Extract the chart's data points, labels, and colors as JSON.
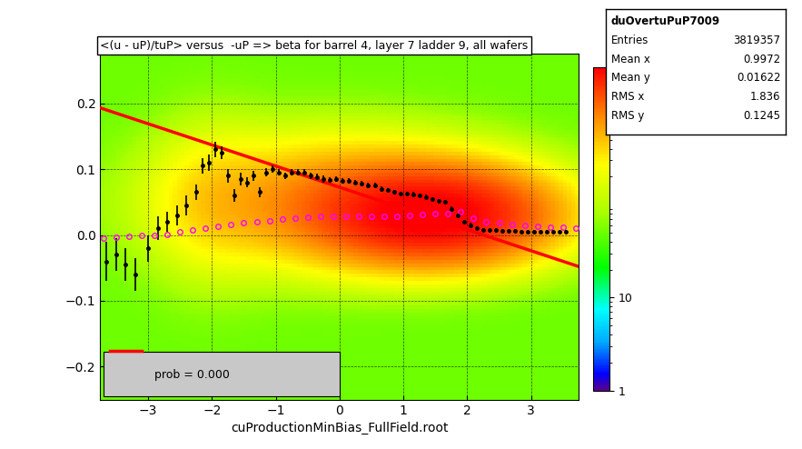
{
  "title": "<(u - uP)/tuP> versus  -uP => beta for barrel 4, layer 7 ladder 9, all wafers",
  "xlabel": "cuProductionMinBias_FullField.root",
  "stats_title": "duOvertuPuP7009",
  "entries": "3819357",
  "mean_x": "0.9972",
  "mean_y": "0.01622",
  "rms_x": "1.836",
  "rms_y": "0.1245",
  "xlim": [
    -3.75,
    3.75
  ],
  "ylim": [
    -0.25,
    0.275
  ],
  "xticks": [
    -3,
    -2,
    -1,
    0,
    1,
    2,
    3
  ],
  "yticks": [
    -0.2,
    -0.1,
    0.0,
    0.1,
    0.2
  ],
  "colorbar_label": "",
  "fit_line_x": [
    -3.75,
    3.75
  ],
  "fit_line_y": [
    0.193,
    -0.048
  ],
  "prob_text": "prob = 0.000",
  "legend_box_color": "#d3d3d3",
  "black_points_x": [
    -3.65,
    -3.5,
    -3.35,
    -3.2,
    -3.0,
    -2.85,
    -2.7,
    -2.55,
    -2.4,
    -2.25,
    -2.15,
    -2.05,
    -1.95,
    -1.85,
    -1.75,
    -1.65,
    -1.55,
    -1.45,
    -1.35,
    -1.25,
    -1.15,
    -1.05,
    -0.95,
    -0.85,
    -0.75,
    -0.65,
    -0.55,
    -0.45,
    -0.35,
    -0.25,
    -0.15,
    -0.05,
    0.05,
    0.15,
    0.25,
    0.35,
    0.45,
    0.55,
    0.65,
    0.75,
    0.85,
    0.95,
    1.05,
    1.15,
    1.25,
    1.35,
    1.45,
    1.55,
    1.65,
    1.75,
    1.85,
    1.95,
    2.05,
    2.15,
    2.25,
    2.35,
    2.45,
    2.55,
    2.65,
    2.75,
    2.85,
    2.95,
    3.05,
    3.15,
    3.25,
    3.35,
    3.45,
    3.55
  ],
  "black_points_y": [
    -0.04,
    -0.03,
    -0.045,
    -0.06,
    -0.02,
    0.01,
    0.02,
    0.03,
    0.045,
    0.065,
    0.105,
    0.11,
    0.13,
    0.125,
    0.09,
    0.06,
    0.085,
    0.08,
    0.09,
    0.065,
    0.095,
    0.1,
    0.095,
    0.09,
    0.095,
    0.095,
    0.095,
    0.09,
    0.088,
    0.085,
    0.083,
    0.085,
    0.082,
    0.082,
    0.08,
    0.078,
    0.075,
    0.075,
    0.07,
    0.068,
    0.065,
    0.063,
    0.063,
    0.062,
    0.06,
    0.058,
    0.055,
    0.052,
    0.05,
    0.04,
    0.03,
    0.02,
    0.015,
    0.01,
    0.008,
    0.007,
    0.007,
    0.006,
    0.006,
    0.006,
    0.005,
    0.005,
    0.005,
    0.005,
    0.005,
    0.005,
    0.005,
    0.005
  ],
  "black_err_y": [
    0.03,
    0.025,
    0.025,
    0.025,
    0.02,
    0.018,
    0.015,
    0.015,
    0.015,
    0.012,
    0.012,
    0.012,
    0.012,
    0.01,
    0.01,
    0.01,
    0.01,
    0.008,
    0.008,
    0.008,
    0.006,
    0.006,
    0.005,
    0.005,
    0.005,
    0.005,
    0.005,
    0.005,
    0.005,
    0.005,
    0.004,
    0.004,
    0.004,
    0.004,
    0.004,
    0.004,
    0.004,
    0.004,
    0.004,
    0.003,
    0.003,
    0.003,
    0.003,
    0.003,
    0.003,
    0.003,
    0.003,
    0.003,
    0.003,
    0.003,
    0.003,
    0.003,
    0.003,
    0.003,
    0.003,
    0.003,
    0.003,
    0.003,
    0.003,
    0.003,
    0.003,
    0.003,
    0.003,
    0.003,
    0.003,
    0.003,
    0.003,
    0.003
  ],
  "pink_points_x": [
    -3.7,
    -3.5,
    -3.3,
    -3.1,
    -2.9,
    -2.7,
    -2.5,
    -2.3,
    -2.1,
    -1.9,
    -1.7,
    -1.5,
    -1.3,
    -1.1,
    -0.9,
    -0.7,
    -0.5,
    -0.3,
    -0.1,
    0.1,
    0.3,
    0.5,
    0.7,
    0.9,
    1.1,
    1.3,
    1.5,
    1.7,
    1.9,
    2.1,
    2.3,
    2.5,
    2.7,
    2.9,
    3.1,
    3.3,
    3.5,
    3.7
  ],
  "pink_points_y": [
    -0.005,
    -0.003,
    -0.002,
    -0.001,
    0.0,
    0.001,
    0.005,
    0.008,
    0.01,
    0.013,
    0.016,
    0.018,
    0.02,
    0.022,
    0.024,
    0.026,
    0.027,
    0.028,
    0.028,
    0.028,
    0.028,
    0.028,
    0.029,
    0.029,
    0.03,
    0.031,
    0.032,
    0.033,
    0.035,
    0.025,
    0.02,
    0.018,
    0.016,
    0.014,
    0.013,
    0.012,
    0.012,
    0.011
  ],
  "colorbar_ticks": [
    1,
    10
  ],
  "background_color": "#ffffff"
}
